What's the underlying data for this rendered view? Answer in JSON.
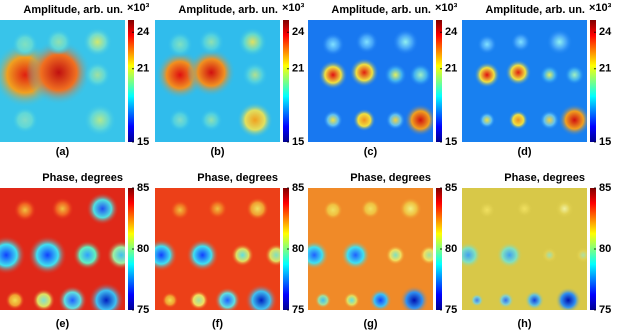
{
  "chart_data": [
    {
      "type": "heatmap",
      "title": "Amplitude, arb. un.",
      "colorbar_exponent": "×10³",
      "label": "(a)",
      "clim": [
        15,
        25
      ],
      "cticks": [
        15,
        21,
        24
      ]
    },
    {
      "type": "heatmap",
      "title": "Amplitude, arb. un.",
      "colorbar_exponent": "×10³",
      "label": "(b)",
      "clim": [
        15,
        25
      ],
      "cticks": [
        15,
        21,
        24
      ]
    },
    {
      "type": "heatmap",
      "title": "Amplitude, arb. un.",
      "colorbar_exponent": "×10³",
      "label": "(c)",
      "clim": [
        15,
        25
      ],
      "cticks": [
        15,
        21,
        24
      ]
    },
    {
      "type": "heatmap",
      "title": "Amplitude, arb. un.",
      "colorbar_exponent": "×10³",
      "label": "(d)",
      "clim": [
        15,
        25
      ],
      "cticks": [
        15,
        21,
        24
      ]
    },
    {
      "type": "heatmap",
      "title": "Phase, degrees",
      "label": "(e)",
      "clim": [
        75,
        85
      ],
      "cticks": [
        75,
        80,
        85
      ]
    },
    {
      "type": "heatmap",
      "title": "Phase, degrees",
      "label": "(f)",
      "clim": [
        75,
        85
      ],
      "cticks": [
        75,
        80,
        85
      ]
    },
    {
      "type": "heatmap",
      "title": "Phase, degrees",
      "label": "(g)",
      "clim": [
        75,
        85
      ],
      "cticks": [
        75,
        80,
        85
      ]
    },
    {
      "type": "heatmap",
      "title": "Phase, degrees",
      "label": "(h)",
      "clim": [
        75,
        85
      ],
      "cticks": [
        75,
        80,
        85
      ]
    }
  ]
}
